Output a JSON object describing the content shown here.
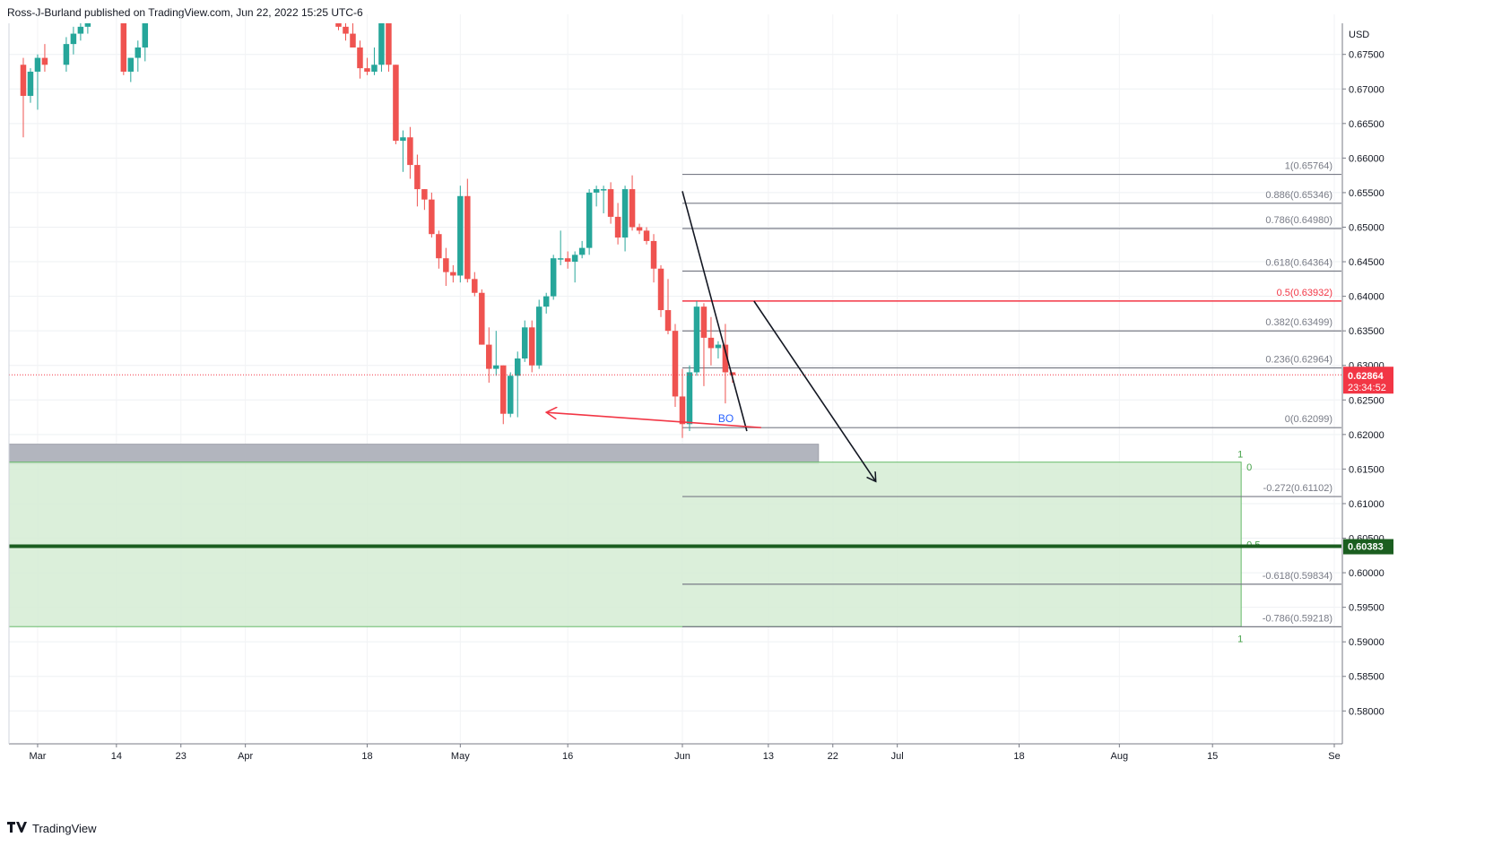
{
  "header": {
    "published_text": "Ross-J-Burland published on TradingView.com, Jun 22, 2022 15:25 UTC-6"
  },
  "footer": {
    "brand": "TradingView",
    "logo_icon": "tradingview-logo-icon"
  },
  "chart_data": {
    "type": "candlestick",
    "title": "",
    "currency": "USD",
    "ylim": [
      0.5755,
      0.6795
    ],
    "y_ticks": [
      0.675,
      0.67,
      0.665,
      0.66,
      0.655,
      0.65,
      0.645,
      0.64,
      0.635,
      0.63,
      0.625,
      0.62,
      0.615,
      0.61,
      0.605,
      0.6,
      0.595,
      0.59,
      0.585,
      0.58
    ],
    "x_ticks": [
      {
        "label": "Mar",
        "day": 3
      },
      {
        "label": "14",
        "day": 14
      },
      {
        "label": "23",
        "day": 23
      },
      {
        "label": "Apr",
        "day": 32
      },
      {
        "label": "18",
        "day": 49
      },
      {
        "label": "May",
        "day": 62
      },
      {
        "label": "16",
        "day": 77
      },
      {
        "label": "Jun",
        "day": 93
      },
      {
        "label": "13",
        "day": 105
      },
      {
        "label": "22",
        "day": 114
      },
      {
        "label": "Jul",
        "day": 123
      },
      {
        "label": "18",
        "day": 140
      },
      {
        "label": "Aug",
        "day": 154
      },
      {
        "label": "15",
        "day": 167
      },
      {
        "label": "Se",
        "day": 184
      }
    ],
    "x_range_days": [
      -1,
      185
    ],
    "candles": [
      {
        "d": 1,
        "o": 0.6735,
        "h": 0.6745,
        "l": 0.663,
        "c": 0.669
      },
      {
        "d": 2,
        "o": 0.669,
        "h": 0.673,
        "l": 0.668,
        "c": 0.6725
      },
      {
        "d": 3,
        "o": 0.6725,
        "h": 0.675,
        "l": 0.667,
        "c": 0.6745
      },
      {
        "d": 4,
        "o": 0.6745,
        "h": 0.6765,
        "l": 0.6725,
        "c": 0.6735
      },
      {
        "d": 7,
        "o": 0.6735,
        "h": 0.6775,
        "l": 0.6725,
        "c": 0.6765
      },
      {
        "d": 8,
        "o": 0.6765,
        "h": 0.679,
        "l": 0.675,
        "c": 0.678
      },
      {
        "d": 9,
        "o": 0.678,
        "h": 0.6795,
        "l": 0.677,
        "c": 0.679
      },
      {
        "d": 10,
        "o": 0.679,
        "h": 0.68,
        "l": 0.678,
        "c": 0.68
      },
      {
        "d": 15,
        "o": 0.68,
        "h": 0.68,
        "l": 0.672,
        "c": 0.6725
      },
      {
        "d": 16,
        "o": 0.6725,
        "h": 0.6745,
        "l": 0.671,
        "c": 0.6745
      },
      {
        "d": 17,
        "o": 0.6745,
        "h": 0.677,
        "l": 0.6725,
        "c": 0.676
      },
      {
        "d": 18,
        "o": 0.676,
        "h": 0.68,
        "l": 0.674,
        "c": 0.68
      },
      {
        "d": 45,
        "o": 0.68,
        "h": 0.68,
        "l": 0.6785,
        "c": 0.679
      },
      {
        "d": 46,
        "o": 0.679,
        "h": 0.68,
        "l": 0.677,
        "c": 0.678
      },
      {
        "d": 47,
        "o": 0.678,
        "h": 0.6795,
        "l": 0.676,
        "c": 0.676
      },
      {
        "d": 48,
        "o": 0.676,
        "h": 0.677,
        "l": 0.6715,
        "c": 0.673
      },
      {
        "d": 49,
        "o": 0.673,
        "h": 0.6745,
        "l": 0.672,
        "c": 0.6725
      },
      {
        "d": 50,
        "o": 0.6725,
        "h": 0.676,
        "l": 0.672,
        "c": 0.6735
      },
      {
        "d": 51,
        "o": 0.6735,
        "h": 0.68,
        "l": 0.6725,
        "c": 0.68
      },
      {
        "d": 52,
        "o": 0.68,
        "h": 0.68,
        "l": 0.6725,
        "c": 0.6735
      },
      {
        "d": 53,
        "o": 0.6735,
        "h": 0.6735,
        "l": 0.662,
        "c": 0.6625
      },
      {
        "d": 54,
        "o": 0.6625,
        "h": 0.664,
        "l": 0.658,
        "c": 0.663
      },
      {
        "d": 55,
        "o": 0.663,
        "h": 0.6645,
        "l": 0.657,
        "c": 0.659
      },
      {
        "d": 56,
        "o": 0.659,
        "h": 0.6605,
        "l": 0.653,
        "c": 0.6555
      },
      {
        "d": 57,
        "o": 0.6555,
        "h": 0.6555,
        "l": 0.6525,
        "c": 0.654
      },
      {
        "d": 58,
        "o": 0.654,
        "h": 0.655,
        "l": 0.6485,
        "c": 0.649
      },
      {
        "d": 59,
        "o": 0.649,
        "h": 0.6495,
        "l": 0.644,
        "c": 0.6455
      },
      {
        "d": 60,
        "o": 0.6455,
        "h": 0.647,
        "l": 0.6415,
        "c": 0.6435
      },
      {
        "d": 61,
        "o": 0.6435,
        "h": 0.6445,
        "l": 0.642,
        "c": 0.643
      },
      {
        "d": 62,
        "o": 0.643,
        "h": 0.656,
        "l": 0.642,
        "c": 0.6545
      },
      {
        "d": 63,
        "o": 0.6545,
        "h": 0.657,
        "l": 0.642,
        "c": 0.6425
      },
      {
        "d": 64,
        "o": 0.6425,
        "h": 0.6435,
        "l": 0.64,
        "c": 0.6405
      },
      {
        "d": 65,
        "o": 0.6405,
        "h": 0.641,
        "l": 0.633,
        "c": 0.633
      },
      {
        "d": 66,
        "o": 0.633,
        "h": 0.6355,
        "l": 0.6275,
        "c": 0.6295
      },
      {
        "d": 67,
        "o": 0.6295,
        "h": 0.635,
        "l": 0.6285,
        "c": 0.63
      },
      {
        "d": 68,
        "o": 0.63,
        "h": 0.63,
        "l": 0.6215,
        "c": 0.623
      },
      {
        "d": 69,
        "o": 0.623,
        "h": 0.629,
        "l": 0.6225,
        "c": 0.6285
      },
      {
        "d": 70,
        "o": 0.6285,
        "h": 0.632,
        "l": 0.6225,
        "c": 0.631
      },
      {
        "d": 71,
        "o": 0.631,
        "h": 0.6365,
        "l": 0.6305,
        "c": 0.6355
      },
      {
        "d": 72,
        "o": 0.6355,
        "h": 0.6365,
        "l": 0.629,
        "c": 0.63
      },
      {
        "d": 73,
        "o": 0.63,
        "h": 0.6395,
        "l": 0.6295,
        "c": 0.6385
      },
      {
        "d": 74,
        "o": 0.6385,
        "h": 0.6405,
        "l": 0.6375,
        "c": 0.64
      },
      {
        "d": 75,
        "o": 0.64,
        "h": 0.646,
        "l": 0.6395,
        "c": 0.6455
      },
      {
        "d": 76,
        "o": 0.6455,
        "h": 0.6495,
        "l": 0.6445,
        "c": 0.6455
      },
      {
        "d": 77,
        "o": 0.6455,
        "h": 0.6465,
        "l": 0.644,
        "c": 0.645
      },
      {
        "d": 78,
        "o": 0.645,
        "h": 0.6465,
        "l": 0.642,
        "c": 0.646
      },
      {
        "d": 79,
        "o": 0.646,
        "h": 0.648,
        "l": 0.6455,
        "c": 0.647
      },
      {
        "d": 80,
        "o": 0.647,
        "h": 0.6555,
        "l": 0.646,
        "c": 0.655
      },
      {
        "d": 81,
        "o": 0.655,
        "h": 0.656,
        "l": 0.653,
        "c": 0.6555
      },
      {
        "d": 82,
        "o": 0.6555,
        "h": 0.656,
        "l": 0.652,
        "c": 0.6555
      },
      {
        "d": 83,
        "o": 0.6555,
        "h": 0.6565,
        "l": 0.6505,
        "c": 0.6515
      },
      {
        "d": 84,
        "o": 0.6515,
        "h": 0.6535,
        "l": 0.6475,
        "c": 0.6485
      },
      {
        "d": 85,
        "o": 0.6485,
        "h": 0.656,
        "l": 0.6465,
        "c": 0.6555
      },
      {
        "d": 86,
        "o": 0.6555,
        "h": 0.6575,
        "l": 0.6495,
        "c": 0.65
      },
      {
        "d": 87,
        "o": 0.65,
        "h": 0.6505,
        "l": 0.649,
        "c": 0.6495
      },
      {
        "d": 88,
        "o": 0.6495,
        "h": 0.65,
        "l": 0.6475,
        "c": 0.648
      },
      {
        "d": 89,
        "o": 0.648,
        "h": 0.649,
        "l": 0.642,
        "c": 0.644
      },
      {
        "d": 90,
        "o": 0.644,
        "h": 0.6445,
        "l": 0.637,
        "c": 0.638
      },
      {
        "d": 91,
        "o": 0.638,
        "h": 0.6425,
        "l": 0.6345,
        "c": 0.635
      },
      {
        "d": 92,
        "o": 0.635,
        "h": 0.636,
        "l": 0.624,
        "c": 0.6255
      },
      {
        "d": 93,
        "o": 0.6255,
        "h": 0.6295,
        "l": 0.6195,
        "c": 0.6215
      },
      {
        "d": 94,
        "o": 0.6215,
        "h": 0.63,
        "l": 0.6205,
        "c": 0.629
      },
      {
        "d": 95,
        "o": 0.629,
        "h": 0.6393,
        "l": 0.6285,
        "c": 0.6385
      },
      {
        "d": 96,
        "o": 0.6385,
        "h": 0.639,
        "l": 0.627,
        "c": 0.634
      },
      {
        "d": 97,
        "o": 0.634,
        "h": 0.637,
        "l": 0.63,
        "c": 0.6325
      },
      {
        "d": 98,
        "o": 0.6325,
        "h": 0.6335,
        "l": 0.631,
        "c": 0.633
      },
      {
        "d": 99,
        "o": 0.633,
        "h": 0.636,
        "l": 0.6245,
        "c": 0.629
      },
      {
        "d": 100,
        "o": 0.629,
        "h": 0.629,
        "l": 0.6275,
        "c": 0.6286
      }
    ],
    "current_price": {
      "value": "0.62864",
      "countdown": "23:34:52",
      "y": 0.62864,
      "color": "#f23645"
    },
    "target_level": {
      "value": "0.60383",
      "y": 0.60383,
      "color": "#1b5e20"
    },
    "fib_retracement": {
      "levels": [
        {
          "label": "1(0.65764)",
          "y": 0.65764,
          "color": "#787b86"
        },
        {
          "label": "0.886(0.65346)",
          "y": 0.65346,
          "color": "#787b86"
        },
        {
          "label": "0.786(0.64980)",
          "y": 0.6498,
          "color": "#787b86"
        },
        {
          "label": "0.618(0.64364)",
          "y": 0.64364,
          "color": "#787b86"
        },
        {
          "label": "0.5(0.63932)",
          "y": 0.63932,
          "color": "#f23645"
        },
        {
          "label": "0.382(0.63499)",
          "y": 0.63499,
          "color": "#787b86"
        },
        {
          "label": "0.236(0.62964)",
          "y": 0.62964,
          "color": "#787b86"
        },
        {
          "label": "0(0.62099)",
          "y": 0.62099,
          "color": "#787b86"
        },
        {
          "label": "-0.272(0.61102)",
          "y": 0.61102,
          "color": "#787b86"
        },
        {
          "label": "-0.618(0.59834)",
          "y": 0.59834,
          "color": "#787b86"
        },
        {
          "label": "-0.786(0.59218)",
          "y": 0.59218,
          "color": "#787b86"
        }
      ],
      "start_day": 93
    },
    "zones": [
      {
        "name": "grey-zone",
        "y_top": 0.6186,
        "y_bottom": 0.6158,
        "color": "#b2b5be"
      },
      {
        "name": "green-zone",
        "y_top": 0.616,
        "y_bottom": 0.5922,
        "color": "#d5ecd4"
      }
    ],
    "zone_labels": [
      {
        "text": "1",
        "y": 0.6172
      },
      {
        "text": "0",
        "y": 0.6153
      },
      {
        "text": "0.5",
        "y": 0.6041
      },
      {
        "text": "1",
        "y": 0.5905
      }
    ],
    "annotations": [
      {
        "text": "BO",
        "day": 98,
        "y": 0.6218,
        "color": "#2962ff"
      }
    ],
    "red_arrow": {
      "from": {
        "day": 104,
        "y": 0.621
      },
      "to": {
        "day": 74,
        "y": 0.6232
      },
      "color": "#f23645"
    },
    "trend_lines": [
      {
        "from": {
          "day": 93,
          "y": 0.6552
        },
        "to": {
          "day": 102,
          "y": 0.6205
        }
      },
      {
        "from": {
          "day": 103,
          "y": 0.6393
        },
        "to": {
          "day": 120,
          "y": 0.6132
        },
        "arrow": true
      }
    ],
    "grid": true
  }
}
